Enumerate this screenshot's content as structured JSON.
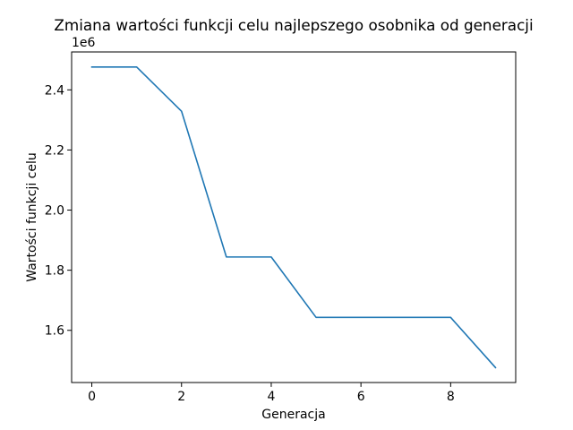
{
  "chart_data": {
    "type": "line",
    "title": "Zmiana wartości funkcji celu najlepszego osobnika od generacji",
    "xlabel": "Generacja",
    "ylabel": "Wartości funkcji celu",
    "y_offset_label": "1e6",
    "xlim": [
      -0.45,
      9.45
    ],
    "ylim": [
      1.4264,
      2.5261
    ],
    "x_ticks": [
      0,
      2,
      4,
      6,
      8
    ],
    "y_ticks": [
      1.6,
      1.8,
      2.0,
      2.2,
      2.4
    ],
    "y_tick_labels": [
      "1.6",
      "1.8",
      "2.0",
      "2.2",
      "2.4"
    ],
    "grid": false,
    "series": [
      {
        "color": "#1f77b4",
        "x": [
          0,
          1,
          2,
          3,
          4,
          5,
          6,
          7,
          8,
          9
        ],
        "y": [
          2.476,
          2.476,
          2.329,
          1.844,
          1.844,
          1.643,
          1.643,
          1.643,
          1.643,
          1.476
        ]
      }
    ]
  }
}
